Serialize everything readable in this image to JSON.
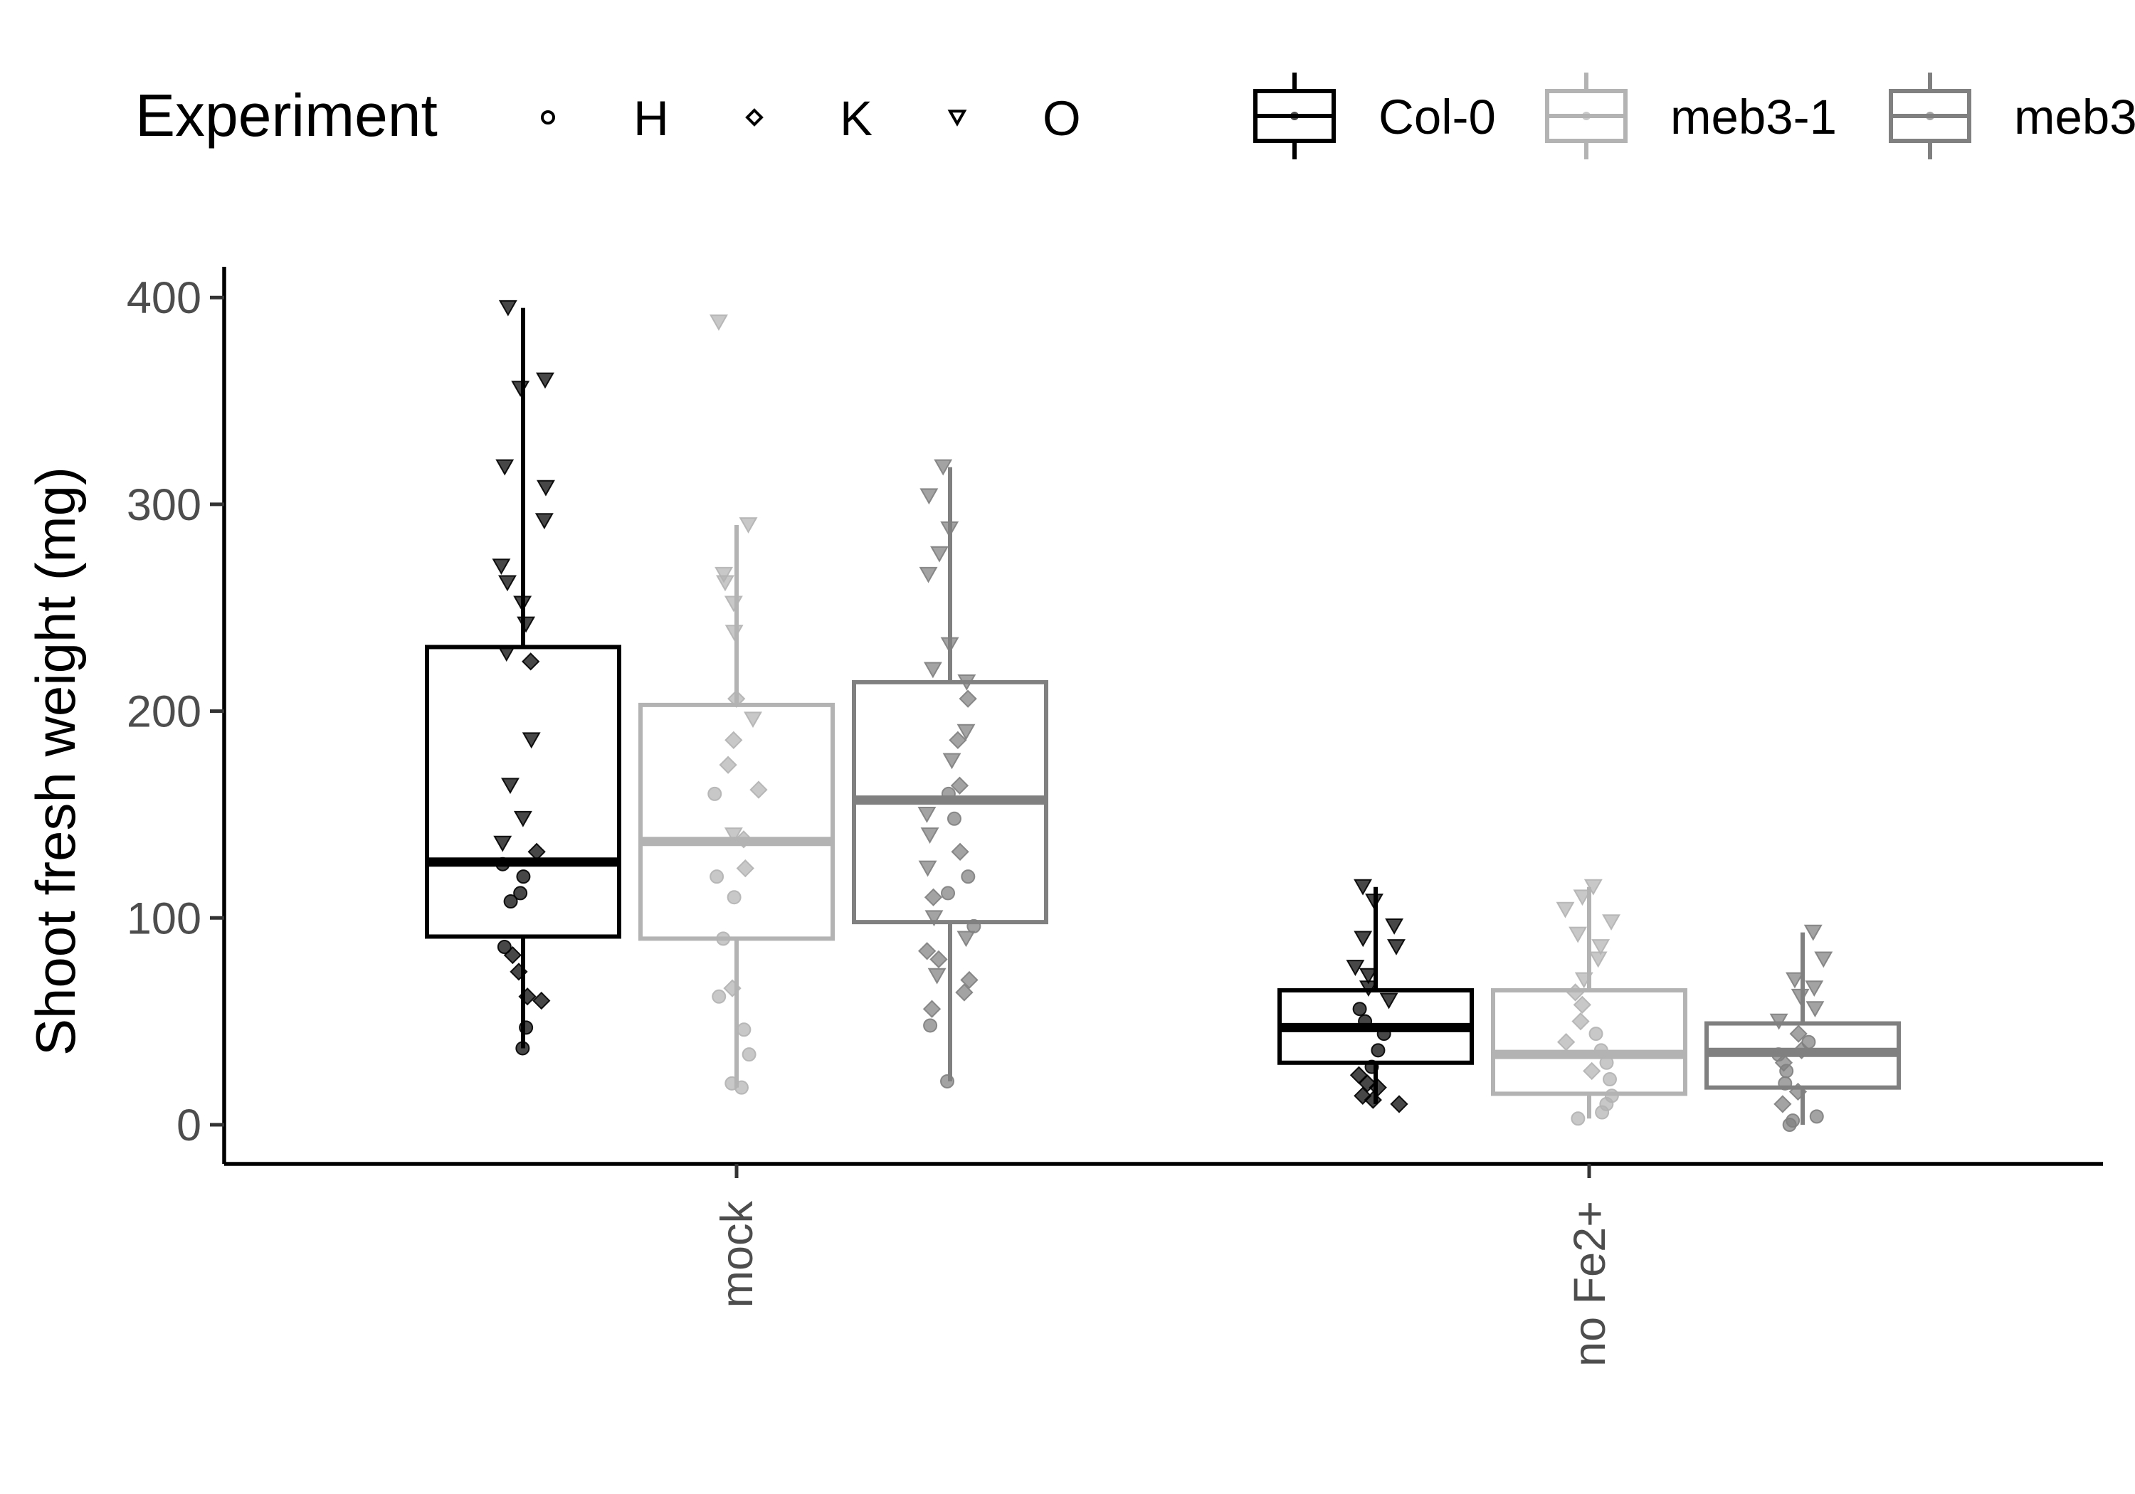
{
  "chart_data": {
    "type": "box",
    "ylabel": "Shoot fresh weight (mg)",
    "xlabel": "",
    "ylim": [
      -15,
      415
    ],
    "yticks": [
      0,
      100,
      200,
      300,
      400
    ],
    "categories": [
      "mock",
      "no Fe2+"
    ],
    "legend_shape": {
      "title": "Experiment",
      "items": [
        {
          "label": "H",
          "shape": "circle"
        },
        {
          "label": "K",
          "shape": "diamond"
        },
        {
          "label": "O",
          "shape": "triangle-down"
        }
      ]
    },
    "legend_genotype": {
      "items": [
        {
          "label": "Col-0",
          "color": "#000000"
        },
        {
          "label": "meb3-1",
          "color": "#b3b3b3"
        },
        {
          "label": "meb3",
          "color": "#808080"
        }
      ]
    },
    "series": [
      {
        "color": "#000000",
        "boxes": [
          {
            "category": "mock",
            "whisker_low": 37,
            "q1": 91,
            "median": 127,
            "q3": 231,
            "whisker_high": 395
          },
          {
            "category": "no Fe2+",
            "whisker_low": 10,
            "q1": 30,
            "median": 47,
            "q3": 65,
            "whisker_high": 115
          }
        ],
        "points": [
          {
            "category": "mock",
            "values": {
              "H": [
                37,
                47,
                86,
                108,
                112,
                120,
                126
              ],
              "K": [
                60,
                62,
                74,
                82,
                132,
                224
              ],
              "O": [
                136,
                148,
                164,
                186,
                228,
                242,
                252,
                262,
                270,
                292,
                308,
                318,
                356,
                360,
                395
              ]
            }
          },
          {
            "category": "no Fe2+",
            "values": {
              "H": [
                28,
                36,
                44,
                50,
                56
              ],
              "K": [
                10,
                12,
                14,
                18,
                20,
                24
              ],
              "O": [
                60,
                66,
                72,
                76,
                86,
                90,
                96,
                108,
                115
              ]
            }
          }
        ]
      },
      {
        "color": "#b3b3b3",
        "boxes": [
          {
            "category": "mock",
            "whisker_low": 18,
            "q1": 90,
            "median": 137,
            "q3": 203,
            "whisker_high": 290
          },
          {
            "category": "no Fe2+",
            "whisker_low": 3,
            "q1": 15,
            "median": 34,
            "q3": 65,
            "whisker_high": 115
          }
        ],
        "points": [
          {
            "category": "mock",
            "values": {
              "H": [
                18,
                20,
                34,
                46,
                62,
                90,
                110,
                120,
                160
              ],
              "K": [
                66,
                124,
                138,
                162,
                174,
                186,
                206
              ],
              "O": [
                140,
                196,
                238,
                252,
                262,
                266,
                290,
                388
              ]
            }
          },
          {
            "category": "no Fe2+",
            "values": {
              "H": [
                3,
                6,
                10,
                14,
                22,
                30,
                36,
                44
              ],
              "K": [
                26,
                40,
                50,
                58,
                64
              ],
              "O": [
                70,
                80,
                86,
                92,
                98,
                104,
                110,
                115
              ]
            }
          }
        ]
      },
      {
        "color": "#808080",
        "boxes": [
          {
            "category": "mock",
            "whisker_low": 21,
            "q1": 98,
            "median": 157,
            "q3": 214,
            "whisker_high": 318
          },
          {
            "category": "no Fe2+",
            "whisker_low": 0,
            "q1": 18,
            "median": 35,
            "q3": 49,
            "whisker_high": 93
          }
        ],
        "points": [
          {
            "category": "mock",
            "values": {
              "H": [
                21,
                48,
                96,
                112,
                120,
                148,
                160
              ],
              "K": [
                56,
                64,
                70,
                80,
                84,
                110,
                132,
                164,
                186,
                206
              ],
              "O": [
                72,
                90,
                100,
                124,
                140,
                150,
                176,
                190,
                214,
                220,
                232,
                266,
                276,
                288,
                304,
                318
              ]
            }
          },
          {
            "category": "no Fe2+",
            "values": {
              "H": [
                0,
                2,
                4,
                20,
                26,
                34,
                40
              ],
              "K": [
                10,
                16,
                30,
                36,
                44
              ],
              "O": [
                50,
                56,
                62,
                66,
                70,
                80,
                93
              ]
            }
          }
        ]
      }
    ]
  }
}
